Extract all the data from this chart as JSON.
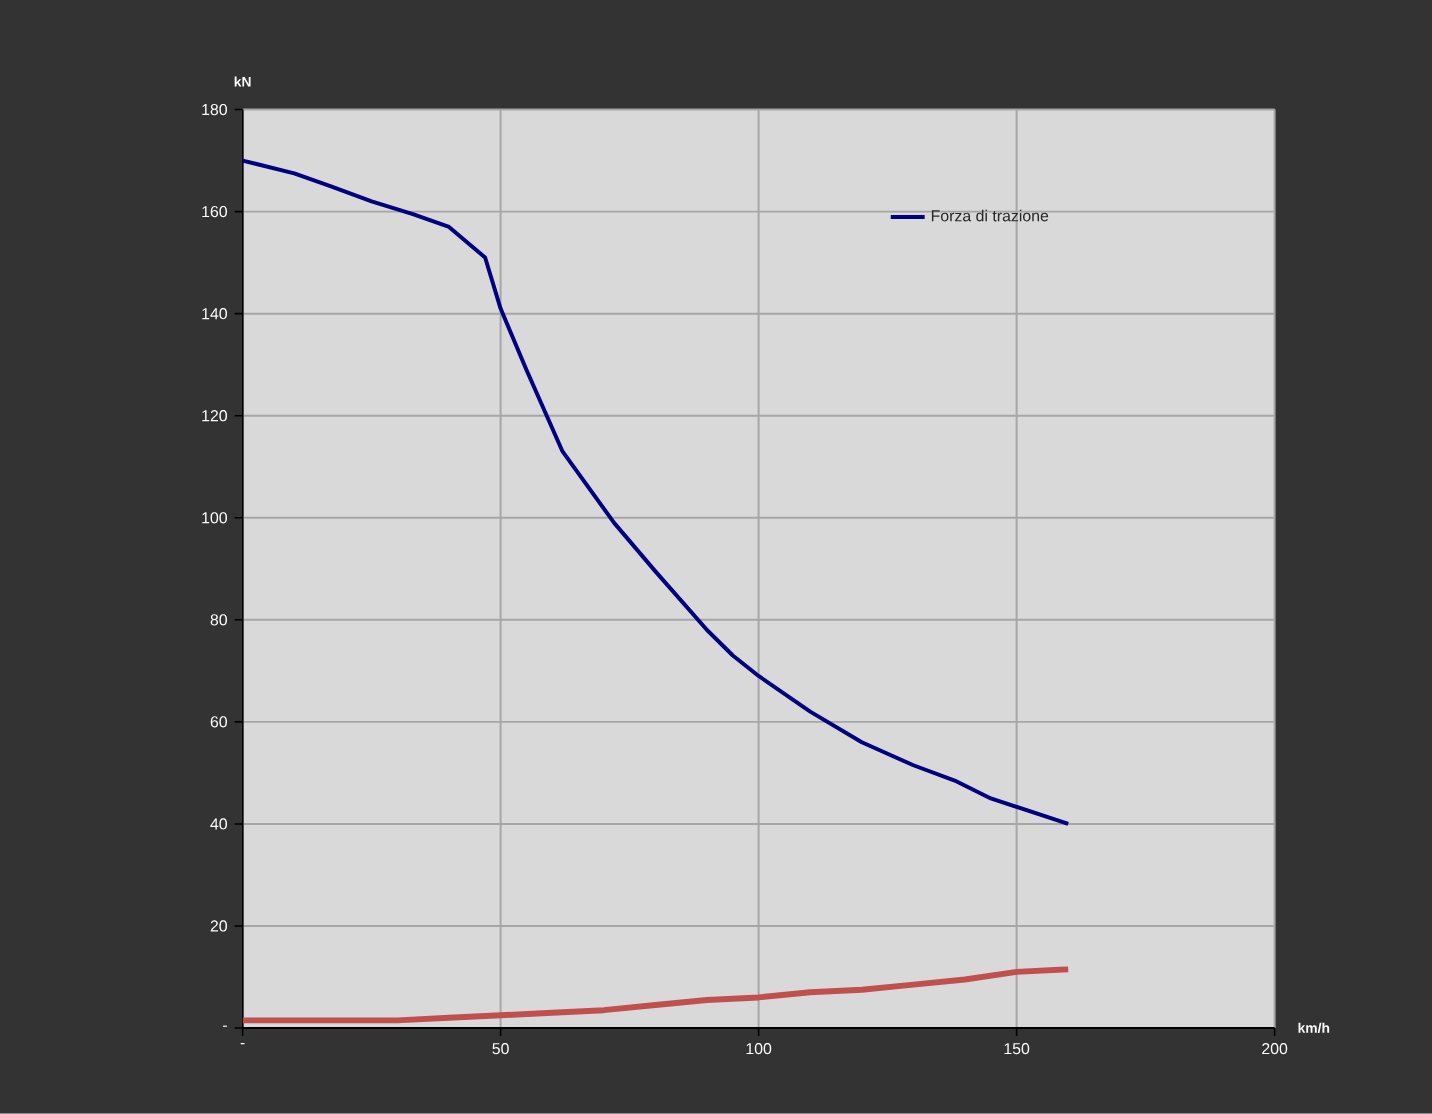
{
  "chart_data": {
    "type": "line",
    "xlabel": "km/h",
    "ylabel": "kN",
    "xlim": [
      0,
      200
    ],
    "ylim": [
      0,
      180
    ],
    "xticks": [
      {
        "value": 0,
        "label": "-"
      },
      50,
      100,
      150,
      200
    ],
    "yticks": [
      {
        "value": 0,
        "label": "-"
      },
      20,
      40,
      60,
      80,
      100,
      120,
      140,
      160,
      180
    ],
    "grid": true,
    "legend": "top right",
    "series": [
      {
        "name": "Forza di trazione",
        "color": "#000080",
        "x": [
          0,
          10,
          17,
          25,
          33,
          40,
          47,
          50,
          55,
          62,
          72,
          80,
          90,
          95,
          100,
          110,
          120,
          130,
          138,
          145,
          160
        ],
        "values": [
          170,
          167.5,
          165,
          162,
          159.5,
          157,
          151,
          141,
          129,
          113,
          99,
          89.5,
          78,
          73,
          69,
          62,
          56,
          51.5,
          48.5,
          45,
          40
        ]
      },
      {
        "color": "#c0504d",
        "x": [
          0,
          30,
          40,
          50,
          60,
          70,
          80,
          90,
          100,
          110,
          120,
          130,
          140,
          150,
          160
        ],
        "values": [
          1.5,
          1.5,
          2,
          2.5,
          3,
          3.5,
          4.5,
          5.5,
          6,
          7,
          7.5,
          8.5,
          9.5,
          11,
          11.5
        ]
      }
    ]
  }
}
